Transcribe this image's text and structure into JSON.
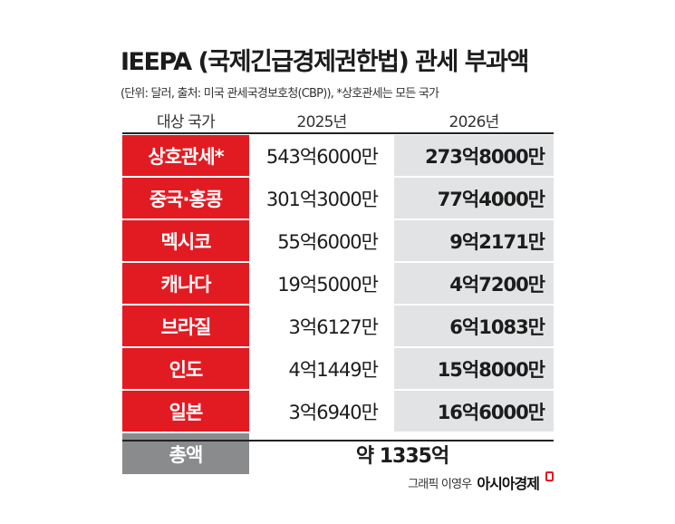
{
  "title": "IEEPA (국제긴급경제권한법) 관세 부과액",
  "subtitle": "(단위: 달러, 출처: 미국 관세국경보호청(CBP)), *상호관세는 모든 국가",
  "header": {
    "country": "대상 국가",
    "year1": "2025년",
    "year2": "2026년"
  },
  "rows": [
    {
      "country": "상호관세*",
      "y2025": "543억6000만",
      "y2026": "273억8000만"
    },
    {
      "country": "중국·홍콩",
      "y2025": "301억3000만",
      "y2026": "77억4000만"
    },
    {
      "country": "멕시코",
      "y2025": "55억6000만",
      "y2026": "9억2171만"
    },
    {
      "country": "캐나다",
      "y2025": "19억5000만",
      "y2026": "4억7200만"
    },
    {
      "country": "브라질",
      "y2025": "3억6127만",
      "y2026": "6억1083만"
    },
    {
      "country": "인도",
      "y2025": "4억1449만",
      "y2026": "15억8000만"
    },
    {
      "country": "일본",
      "y2025": "3억6940만",
      "y2026": "16억6000만"
    }
  ],
  "total": {
    "label": "총액",
    "value": "약 1335억"
  },
  "credit": {
    "graphic": "그래픽 이영우",
    "brand": "아시아경제"
  },
  "colors": {
    "accent": "#e21b23",
    "total_label_bg": "#8a8b8d",
    "col2026_bg": "#e2e3e4"
  }
}
